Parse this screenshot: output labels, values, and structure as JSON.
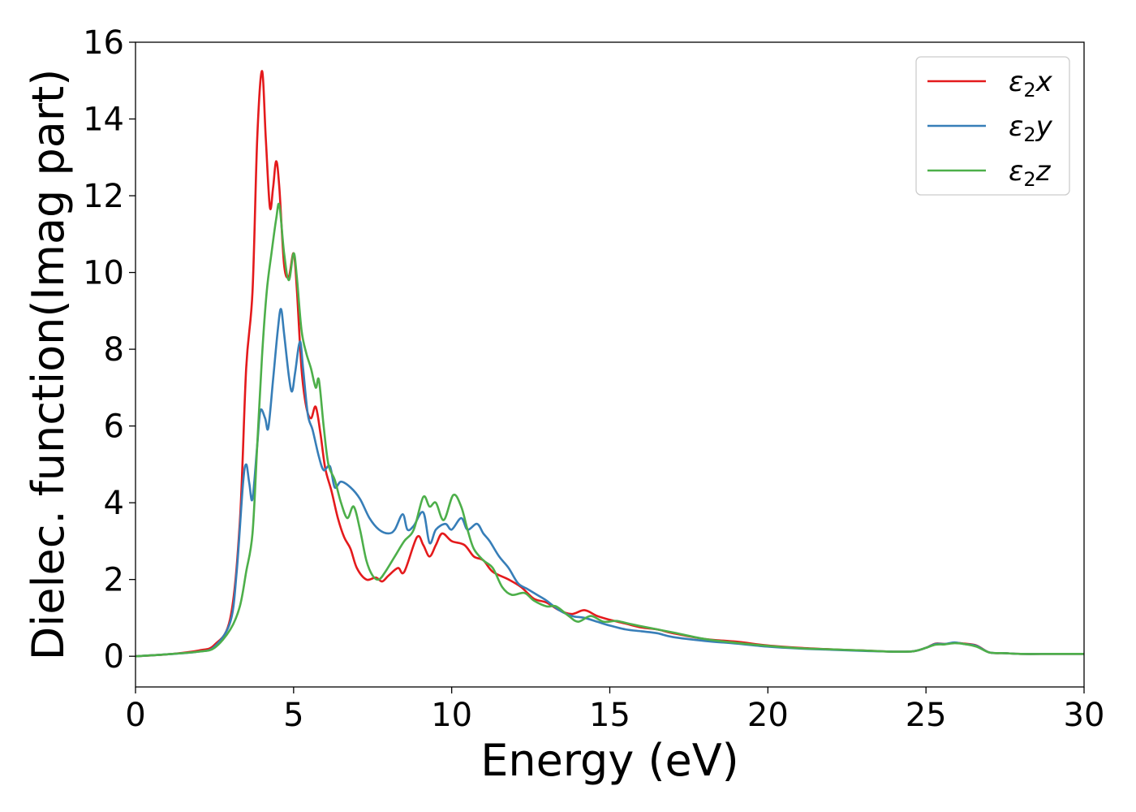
{
  "chart_data": {
    "type": "line",
    "xlabel": "Energy (eV)",
    "ylabel": "Dielec. function(Imag part)",
    "xlim": [
      0,
      30
    ],
    "ylim": [
      -0.8,
      16
    ],
    "xticks": [
      "0",
      "5",
      "10",
      "15",
      "20",
      "25",
      "30"
    ],
    "yticks": [
      "0",
      "2",
      "4",
      "6",
      "8",
      "10",
      "12",
      "14",
      "16"
    ],
    "grid": false,
    "legend_position": "top-right",
    "series": [
      {
        "name": "ε2x",
        "legend_base": "ε",
        "legend_sub": "2",
        "legend_var": "x",
        "color": "#e41a1c",
        "points": [
          [
            0,
            0
          ],
          [
            1,
            0.05
          ],
          [
            2,
            0.15
          ],
          [
            2.5,
            0.3
          ],
          [
            3.0,
            1.0
          ],
          [
            3.3,
            3.5
          ],
          [
            3.5,
            7.5
          ],
          [
            3.7,
            9.5
          ],
          [
            3.85,
            13.5
          ],
          [
            4.0,
            15.25
          ],
          [
            4.12,
            13.5
          ],
          [
            4.25,
            11.7
          ],
          [
            4.35,
            12.2
          ],
          [
            4.45,
            12.9
          ],
          [
            4.55,
            12.2
          ],
          [
            4.7,
            10.2
          ],
          [
            4.85,
            9.9
          ],
          [
            5.0,
            10.5
          ],
          [
            5.1,
            9.6
          ],
          [
            5.25,
            7.5
          ],
          [
            5.4,
            6.5
          ],
          [
            5.55,
            6.2
          ],
          [
            5.7,
            6.5
          ],
          [
            5.85,
            5.8
          ],
          [
            6.0,
            4.9
          ],
          [
            6.2,
            4.3
          ],
          [
            6.4,
            3.6
          ],
          [
            6.6,
            3.1
          ],
          [
            6.8,
            2.8
          ],
          [
            7.0,
            2.3
          ],
          [
            7.3,
            2.0
          ],
          [
            7.6,
            2.05
          ],
          [
            7.8,
            1.95
          ],
          [
            8.0,
            2.1
          ],
          [
            8.3,
            2.3
          ],
          [
            8.5,
            2.2
          ],
          [
            8.9,
            3.1
          ],
          [
            9.1,
            2.9
          ],
          [
            9.3,
            2.6
          ],
          [
            9.5,
            2.9
          ],
          [
            9.7,
            3.2
          ],
          [
            10.0,
            3.0
          ],
          [
            10.4,
            2.9
          ],
          [
            10.7,
            2.6
          ],
          [
            11.0,
            2.5
          ],
          [
            11.3,
            2.2
          ],
          [
            11.8,
            2.0
          ],
          [
            12.2,
            1.8
          ],
          [
            12.6,
            1.5
          ],
          [
            13.0,
            1.4
          ],
          [
            13.4,
            1.2
          ],
          [
            13.8,
            1.1
          ],
          [
            14.2,
            1.2
          ],
          [
            14.6,
            1.05
          ],
          [
            15.0,
            0.95
          ],
          [
            15.5,
            0.85
          ],
          [
            16.0,
            0.75
          ],
          [
            16.5,
            0.7
          ],
          [
            17.0,
            0.6
          ],
          [
            18.0,
            0.45
          ],
          [
            19.0,
            0.38
          ],
          [
            20.0,
            0.28
          ],
          [
            21.0,
            0.22
          ],
          [
            22.0,
            0.18
          ],
          [
            23.0,
            0.15
          ],
          [
            24.0,
            0.12
          ],
          [
            24.6,
            0.13
          ],
          [
            25.0,
            0.22
          ],
          [
            25.3,
            0.33
          ],
          [
            25.6,
            0.32
          ],
          [
            25.9,
            0.35
          ],
          [
            26.2,
            0.33
          ],
          [
            26.6,
            0.28
          ],
          [
            27.0,
            0.1
          ],
          [
            27.5,
            0.08
          ],
          [
            28.0,
            0.06
          ],
          [
            29.0,
            0.06
          ],
          [
            30.0,
            0.06
          ]
        ]
      },
      {
        "name": "ε2y",
        "legend_base": "ε",
        "legend_sub": "2",
        "legend_var": "y",
        "color": "#377eb8",
        "points": [
          [
            0,
            0
          ],
          [
            1,
            0.05
          ],
          [
            2,
            0.12
          ],
          [
            2.5,
            0.25
          ],
          [
            3.0,
            0.9
          ],
          [
            3.2,
            2.2
          ],
          [
            3.4,
            4.5
          ],
          [
            3.5,
            5.0
          ],
          [
            3.6,
            4.5
          ],
          [
            3.7,
            4.1
          ],
          [
            3.85,
            5.5
          ],
          [
            3.95,
            6.4
          ],
          [
            4.1,
            6.2
          ],
          [
            4.2,
            5.95
          ],
          [
            4.35,
            7.2
          ],
          [
            4.5,
            8.5
          ],
          [
            4.6,
            9.05
          ],
          [
            4.7,
            8.4
          ],
          [
            4.85,
            7.3
          ],
          [
            4.95,
            6.9
          ],
          [
            5.05,
            7.4
          ],
          [
            5.2,
            8.2
          ],
          [
            5.3,
            7.5
          ],
          [
            5.45,
            6.3
          ],
          [
            5.6,
            5.9
          ],
          [
            5.8,
            5.2
          ],
          [
            5.95,
            4.85
          ],
          [
            6.15,
            4.95
          ],
          [
            6.3,
            4.4
          ],
          [
            6.5,
            4.55
          ],
          [
            6.8,
            4.4
          ],
          [
            7.1,
            4.1
          ],
          [
            7.4,
            3.6
          ],
          [
            7.7,
            3.3
          ],
          [
            8.0,
            3.2
          ],
          [
            8.2,
            3.3
          ],
          [
            8.45,
            3.7
          ],
          [
            8.6,
            3.3
          ],
          [
            8.8,
            3.4
          ],
          [
            9.1,
            3.75
          ],
          [
            9.3,
            2.95
          ],
          [
            9.5,
            3.3
          ],
          [
            9.8,
            3.45
          ],
          [
            10.0,
            3.3
          ],
          [
            10.3,
            3.6
          ],
          [
            10.5,
            3.3
          ],
          [
            10.8,
            3.45
          ],
          [
            11.0,
            3.2
          ],
          [
            11.2,
            3.0
          ],
          [
            11.5,
            2.6
          ],
          [
            11.8,
            2.3
          ],
          [
            12.1,
            1.9
          ],
          [
            12.4,
            1.75
          ],
          [
            12.7,
            1.6
          ],
          [
            13.0,
            1.45
          ],
          [
            13.4,
            1.2
          ],
          [
            13.8,
            1.05
          ],
          [
            14.2,
            1.0
          ],
          [
            14.6,
            0.9
          ],
          [
            15.0,
            0.8
          ],
          [
            15.5,
            0.7
          ],
          [
            16.0,
            0.65
          ],
          [
            16.5,
            0.6
          ],
          [
            17.0,
            0.5
          ],
          [
            18.0,
            0.4
          ],
          [
            19.0,
            0.33
          ],
          [
            20.0,
            0.25
          ],
          [
            21.0,
            0.2
          ],
          [
            22.0,
            0.17
          ],
          [
            23.0,
            0.14
          ],
          [
            24.0,
            0.12
          ],
          [
            24.6,
            0.13
          ],
          [
            25.0,
            0.22
          ],
          [
            25.3,
            0.32
          ],
          [
            25.6,
            0.32
          ],
          [
            25.9,
            0.36
          ],
          [
            26.2,
            0.32
          ],
          [
            26.6,
            0.27
          ],
          [
            27.0,
            0.1
          ],
          [
            27.5,
            0.08
          ],
          [
            28.0,
            0.06
          ],
          [
            29.0,
            0.06
          ],
          [
            30.0,
            0.06
          ]
        ]
      },
      {
        "name": "ε2z",
        "legend_base": "ε",
        "legend_sub": "2",
        "legend_var": "z",
        "color": "#4daf4a",
        "points": [
          [
            0,
            0
          ],
          [
            1,
            0.05
          ],
          [
            2,
            0.12
          ],
          [
            2.5,
            0.22
          ],
          [
            3.0,
            0.7
          ],
          [
            3.3,
            1.3
          ],
          [
            3.5,
            2.2
          ],
          [
            3.7,
            3.2
          ],
          [
            3.85,
            5.5
          ],
          [
            4.0,
            7.8
          ],
          [
            4.15,
            9.5
          ],
          [
            4.3,
            10.5
          ],
          [
            4.45,
            11.4
          ],
          [
            4.55,
            11.75
          ],
          [
            4.7,
            10.5
          ],
          [
            4.85,
            9.8
          ],
          [
            5.0,
            10.5
          ],
          [
            5.1,
            9.9
          ],
          [
            5.25,
            8.5
          ],
          [
            5.4,
            7.9
          ],
          [
            5.55,
            7.5
          ],
          [
            5.7,
            7.0
          ],
          [
            5.8,
            7.2
          ],
          [
            5.95,
            6.0
          ],
          [
            6.1,
            5.0
          ],
          [
            6.3,
            4.6
          ],
          [
            6.5,
            4.0
          ],
          [
            6.7,
            3.6
          ],
          [
            6.9,
            3.9
          ],
          [
            7.1,
            3.3
          ],
          [
            7.3,
            2.5
          ],
          [
            7.5,
            2.1
          ],
          [
            7.7,
            2.0
          ],
          [
            7.9,
            2.2
          ],
          [
            8.2,
            2.6
          ],
          [
            8.5,
            3.0
          ],
          [
            8.8,
            3.3
          ],
          [
            9.1,
            4.15
          ],
          [
            9.3,
            3.9
          ],
          [
            9.5,
            4.0
          ],
          [
            9.75,
            3.55
          ],
          [
            10.05,
            4.2
          ],
          [
            10.3,
            3.9
          ],
          [
            10.5,
            3.3
          ],
          [
            10.7,
            2.8
          ],
          [
            11.0,
            2.5
          ],
          [
            11.3,
            2.3
          ],
          [
            11.6,
            1.8
          ],
          [
            11.9,
            1.6
          ],
          [
            12.3,
            1.65
          ],
          [
            12.6,
            1.45
          ],
          [
            13.0,
            1.3
          ],
          [
            13.3,
            1.3
          ],
          [
            13.7,
            1.05
          ],
          [
            14.0,
            0.9
          ],
          [
            14.4,
            1.05
          ],
          [
            14.8,
            0.9
          ],
          [
            15.2,
            0.92
          ],
          [
            15.6,
            0.85
          ],
          [
            16.0,
            0.78
          ],
          [
            16.5,
            0.7
          ],
          [
            17.0,
            0.62
          ],
          [
            18.0,
            0.45
          ],
          [
            19.0,
            0.35
          ],
          [
            20.0,
            0.27
          ],
          [
            21.0,
            0.21
          ],
          [
            22.0,
            0.18
          ],
          [
            23.0,
            0.15
          ],
          [
            24.0,
            0.12
          ],
          [
            24.6,
            0.13
          ],
          [
            25.0,
            0.22
          ],
          [
            25.3,
            0.3
          ],
          [
            25.6,
            0.31
          ],
          [
            25.9,
            0.34
          ],
          [
            26.2,
            0.32
          ],
          [
            26.6,
            0.25
          ],
          [
            27.0,
            0.1
          ],
          [
            27.5,
            0.08
          ],
          [
            28.0,
            0.06
          ],
          [
            29.0,
            0.06
          ],
          [
            30.0,
            0.06
          ]
        ]
      }
    ]
  }
}
